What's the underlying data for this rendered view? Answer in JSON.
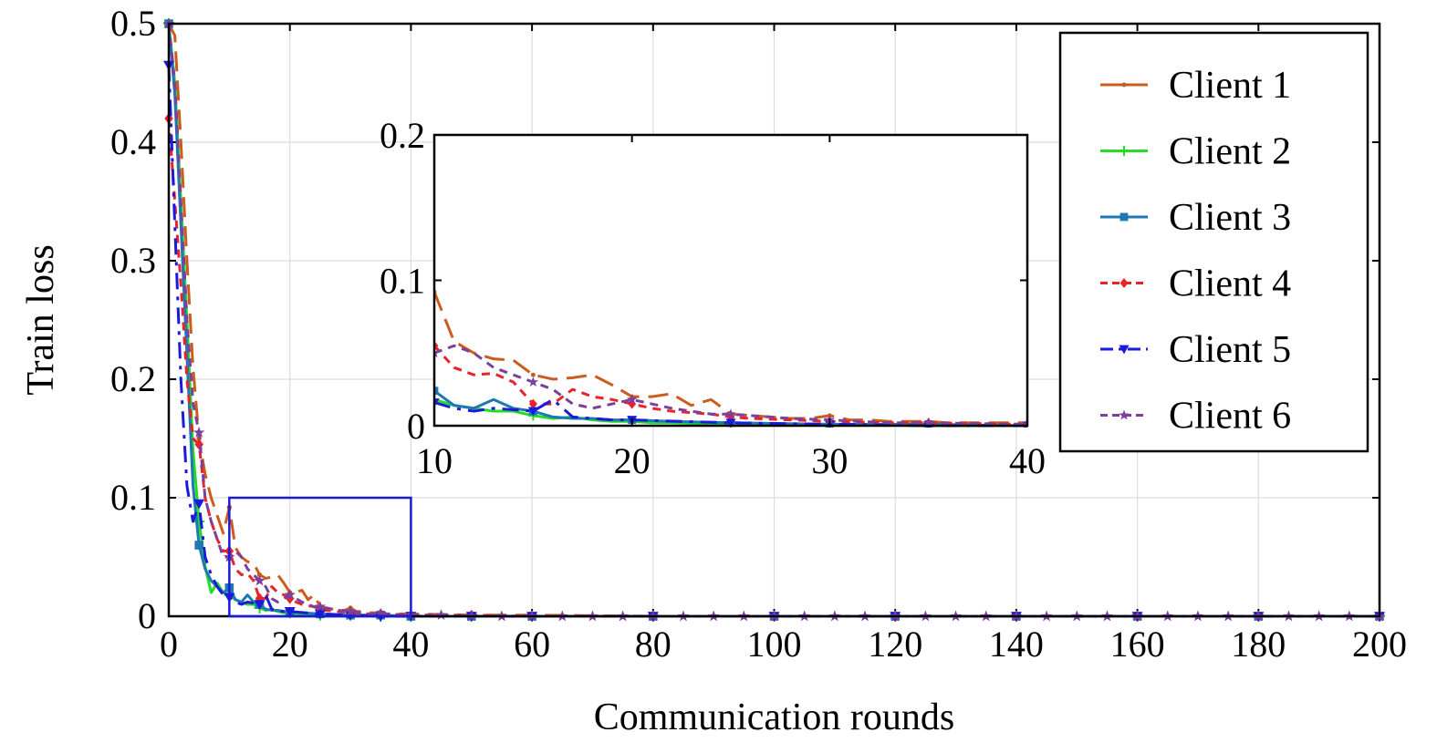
{
  "chart_data": {
    "type": "line",
    "title": "",
    "xlabel": "Communication rounds",
    "ylabel": "Train loss",
    "xlim": [
      0,
      200
    ],
    "ylim": [
      0,
      0.5
    ],
    "xticks": [
      "0",
      "20",
      "40",
      "60",
      "80",
      "100",
      "120",
      "140",
      "160",
      "180",
      "200"
    ],
    "yticks": [
      "0",
      "0.1",
      "0.2",
      "0.3",
      "0.4",
      "0.5"
    ],
    "grid": true,
    "legend_position": "top-right",
    "series": [
      {
        "name": "Client 1",
        "color": "#cc5b1e",
        "line_style": "long-dash",
        "marker": "dot",
        "x": [
          0,
          1,
          2,
          3,
          4,
          5,
          6,
          7,
          8,
          9,
          10,
          11,
          12,
          13,
          14,
          15,
          16,
          17,
          18,
          19,
          20,
          21,
          22,
          23,
          24,
          25,
          26,
          27,
          28,
          29,
          30,
          31,
          32,
          33,
          34,
          35,
          36,
          37,
          38,
          39,
          40,
          50,
          60,
          80,
          100,
          120,
          140,
          160,
          180,
          200
        ],
        "y": [
          0.5,
          0.49,
          0.4,
          0.3,
          0.21,
          0.15,
          0.12,
          0.1,
          0.085,
          0.07,
          0.092,
          0.058,
          0.05,
          0.046,
          0.045,
          0.035,
          0.032,
          0.033,
          0.035,
          0.028,
          0.02,
          0.02,
          0.022,
          0.014,
          0.018,
          0.008,
          0.007,
          0.006,
          0.005,
          0.005,
          0.007,
          0.004,
          0.004,
          0.003,
          0.003,
          0.003,
          0.002,
          0.002,
          0.002,
          0.002,
          0.002,
          0.001,
          0.001,
          0.0,
          0.0,
          0.0,
          0.0,
          0.0,
          0.0,
          0.0
        ]
      },
      {
        "name": "Client 2",
        "color": "#22dd22",
        "line_style": "solid",
        "marker": "plus",
        "x": [
          0,
          1,
          2,
          3,
          4,
          5,
          6,
          7,
          8,
          9,
          10,
          11,
          12,
          13,
          14,
          15,
          16,
          17,
          18,
          19,
          20,
          21,
          22,
          25,
          30,
          35,
          40,
          50,
          60,
          80,
          100,
          120,
          140,
          160,
          180,
          200
        ],
        "y": [
          0.5,
          0.45,
          0.35,
          0.25,
          0.14,
          0.08,
          0.042,
          0.02,
          0.028,
          0.02,
          0.018,
          0.014,
          0.012,
          0.01,
          0.01,
          0.007,
          0.005,
          0.006,
          0.004,
          0.003,
          0.003,
          0.002,
          0.002,
          0.001,
          0.001,
          0.0,
          0.0,
          0.0,
          0.0,
          0.0,
          0.0,
          0.0,
          0.0,
          0.0,
          0.0,
          0.0
        ]
      },
      {
        "name": "Client 3",
        "color": "#1f77b4",
        "line_style": "solid",
        "marker": "square",
        "x": [
          0,
          1,
          2,
          3,
          4,
          5,
          6,
          7,
          8,
          9,
          10,
          11,
          12,
          13,
          14,
          15,
          16,
          17,
          18,
          19,
          20,
          22,
          25,
          30,
          35,
          40,
          50,
          60,
          80,
          100,
          120,
          140,
          160,
          180,
          200
        ],
        "y": [
          0.5,
          0.44,
          0.33,
          0.22,
          0.11,
          0.06,
          0.04,
          0.03,
          0.025,
          0.02,
          0.024,
          0.014,
          0.012,
          0.018,
          0.012,
          0.01,
          0.006,
          0.005,
          0.005,
          0.004,
          0.004,
          0.003,
          0.002,
          0.001,
          0.001,
          0.0,
          0.0,
          0.0,
          0.0,
          0.0,
          0.0,
          0.0,
          0.0,
          0.0,
          0.0
        ]
      },
      {
        "name": "Client 4",
        "color": "#e8232a",
        "line_style": "short-dash",
        "marker": "diamond",
        "x": [
          0,
          1,
          2,
          3,
          4,
          5,
          6,
          7,
          8,
          9,
          10,
          11,
          12,
          13,
          14,
          15,
          16,
          17,
          18,
          19,
          20,
          21,
          22,
          23,
          24,
          25,
          26,
          28,
          30,
          33,
          35,
          40,
          50,
          60,
          80,
          100,
          120,
          140,
          160,
          180,
          200
        ],
        "y": [
          0.42,
          0.35,
          0.28,
          0.2,
          0.15,
          0.145,
          0.1,
          0.08,
          0.065,
          0.055,
          0.055,
          0.04,
          0.035,
          0.036,
          0.03,
          0.015,
          0.015,
          0.025,
          0.02,
          0.018,
          0.015,
          0.012,
          0.01,
          0.009,
          0.008,
          0.006,
          0.005,
          0.004,
          0.003,
          0.002,
          0.002,
          0.001,
          0.001,
          0.0,
          0.0,
          0.0,
          0.0,
          0.0,
          0.0,
          0.0,
          0.0
        ]
      },
      {
        "name": "Client 5",
        "color": "#1a1adc",
        "line_style": "mixed-dash",
        "marker": "down-triangle",
        "x": [
          0,
          1,
          2,
          3,
          4,
          5,
          6,
          7,
          8,
          9,
          10,
          11,
          12,
          13,
          14,
          15,
          16,
          17,
          18,
          19,
          20,
          25,
          30,
          35,
          40,
          50,
          60,
          80,
          100,
          120,
          140,
          160,
          180,
          200
        ],
        "y": [
          0.465,
          0.33,
          0.2,
          0.11,
          0.08,
          0.095,
          0.05,
          0.035,
          0.025,
          0.018,
          0.016,
          0.012,
          0.01,
          0.012,
          0.011,
          0.01,
          0.018,
          0.006,
          0.005,
          0.004,
          0.004,
          0.002,
          0.001,
          0.0,
          0.0,
          0.0,
          0.0,
          0.0,
          0.0,
          0.0,
          0.0,
          0.0,
          0.0,
          0.0
        ]
      },
      {
        "name": "Client 6",
        "color": "#7b3f9e",
        "line_style": "short-dash",
        "marker": "star",
        "x": [
          0,
          1,
          2,
          3,
          4,
          5,
          6,
          7,
          8,
          9,
          10,
          11,
          12,
          13,
          14,
          15,
          16,
          17,
          18,
          19,
          20,
          21,
          22,
          23,
          24,
          25,
          26,
          28,
          30,
          33,
          35,
          40,
          45,
          50,
          55,
          60,
          65,
          70,
          75,
          80,
          85,
          90,
          95,
          100,
          105,
          110,
          115,
          120,
          125,
          130,
          135,
          140,
          145,
          150,
          155,
          160,
          165,
          170,
          175,
          180,
          185,
          190,
          195,
          200
        ],
        "y": [
          0.5,
          0.45,
          0.35,
          0.25,
          0.18,
          0.155,
          0.1,
          0.08,
          0.065,
          0.05,
          0.05,
          0.055,
          0.05,
          0.04,
          0.035,
          0.03,
          0.025,
          0.015,
          0.012,
          0.015,
          0.018,
          0.015,
          0.012,
          0.01,
          0.008,
          0.008,
          0.007,
          0.005,
          0.004,
          0.002,
          0.002,
          0.001,
          0.001,
          0.0,
          0.0,
          0.0,
          0.0,
          0.0,
          0.0,
          0.0,
          0.0,
          0.0,
          0.0,
          0.0,
          0.0,
          0.0,
          0.0,
          0.0,
          0.0,
          0.0,
          0.0,
          0.0,
          0.0,
          0.0,
          0.0,
          0.0,
          0.0,
          0.0,
          0.0,
          0.0,
          0.0,
          0.0,
          0.0,
          0.0
        ]
      }
    ],
    "zoom_region": {
      "x": [
        10,
        40
      ],
      "y": [
        0,
        0.1
      ],
      "color": "#1a1adc"
    },
    "inset": {
      "xlim": [
        10,
        40
      ],
      "ylim": [
        0,
        0.2
      ],
      "xticks": [
        "10",
        "20",
        "30",
        "40"
      ],
      "yticks": [
        "0",
        "0.1",
        "0.2"
      ],
      "grid": false
    }
  }
}
